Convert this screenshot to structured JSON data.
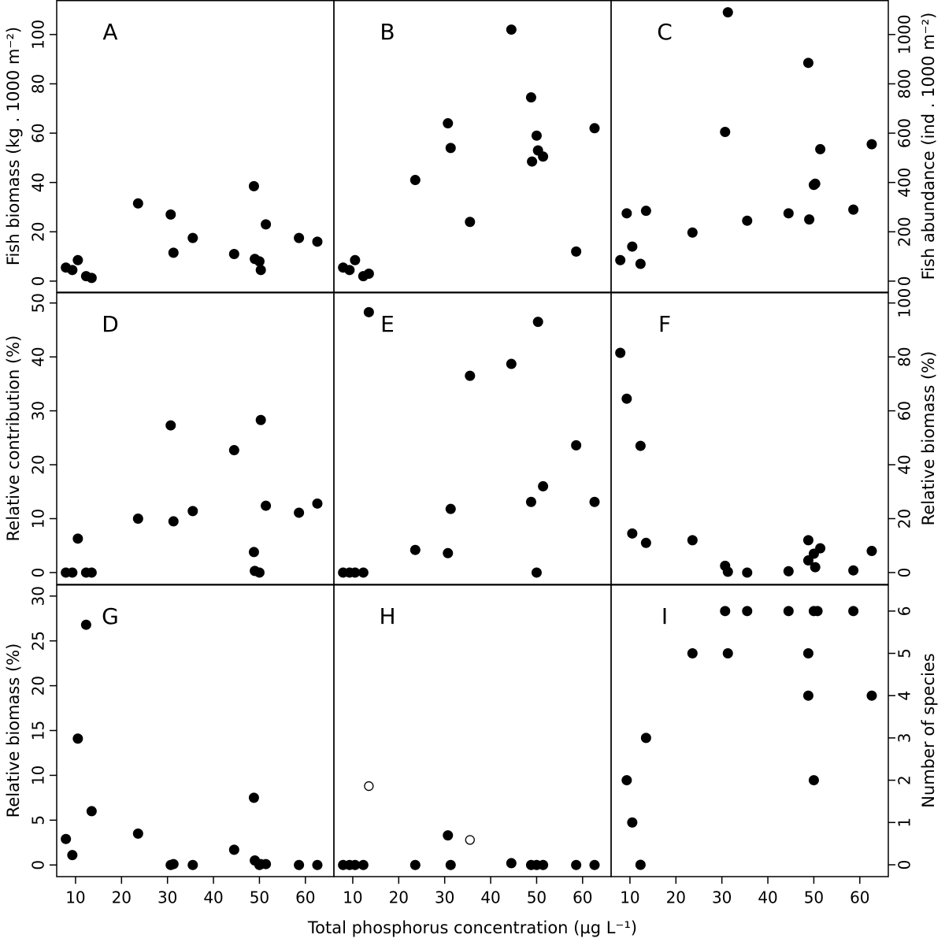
{
  "chart_data": [
    {
      "type": "scatter",
      "label": "A",
      "ylabel": "Fish biomass (kg . 1000 m⁻²)",
      "y_axis_side": "left",
      "xlim": [
        5.9,
        66.2
      ],
      "ylim": [
        -4.5,
        114
      ],
      "yticks": [
        0,
        20,
        40,
        60,
        80,
        100
      ],
      "series": [
        {
          "color": "#000000",
          "marker": "filled",
          "x": [
            7.9,
            9.3,
            10.5,
            12.3,
            13.5,
            23.6,
            30.7,
            31.3,
            35.5,
            44.5,
            48.8,
            49.0,
            50.0,
            50.3,
            51.4,
            58.6,
            62.6
          ],
          "y": [
            5.5,
            4.5,
            8.5,
            2,
            1.3,
            31.5,
            27,
            11.5,
            17.5,
            11,
            38.5,
            9,
            8,
            4.5,
            23,
            17.5,
            16
          ]
        }
      ]
    },
    {
      "type": "scatter",
      "label": "B",
      "xlim": [
        5.9,
        66.2
      ],
      "ylim": [
        -4.5,
        114
      ],
      "series": [
        {
          "color": "#000000",
          "marker": "filled",
          "x": [
            7.9,
            9.3,
            10.5,
            12.3,
            13.5,
            23.6,
            30.7,
            31.3,
            35.5,
            44.5,
            48.8,
            49.0,
            50.0,
            50.3,
            51.4,
            58.6,
            62.6
          ],
          "y": [
            5.5,
            4.5,
            8.5,
            2,
            3,
            41,
            64,
            54,
            24,
            102,
            74.5,
            48.5,
            59,
            53,
            50.5,
            12,
            62
          ]
        }
      ]
    },
    {
      "type": "scatter",
      "label": "C",
      "ylabel": "Fish abundance (ind . 1000 m⁻²)",
      "y_axis_side": "right",
      "xlim": [
        5.9,
        66.2
      ],
      "ylim": [
        -45,
        1140
      ],
      "yticks": [
        0,
        200,
        400,
        600,
        800,
        1000
      ],
      "series": [
        {
          "color": "#000000",
          "marker": "filled",
          "x": [
            7.9,
            9.3,
            10.5,
            12.3,
            13.5,
            23.6,
            30.7,
            31.3,
            35.5,
            44.5,
            48.8,
            49.0,
            50.0,
            50.3,
            51.4,
            58.6,
            62.6
          ],
          "y": [
            85,
            275,
            140,
            70,
            285,
            197,
            605,
            1090,
            245,
            275,
            885,
            250,
            390,
            395,
            535,
            290,
            555
          ]
        }
      ]
    },
    {
      "type": "scatter",
      "label": "D",
      "ylabel": "Relative contribution (%)",
      "y_axis_side": "left",
      "xlim": [
        5.9,
        66.2
      ],
      "ylim": [
        -2.2,
        52
      ],
      "yticks": [
        0,
        10,
        20,
        30,
        40,
        50
      ],
      "series": [
        {
          "color": "#000000",
          "marker": "filled",
          "x": [
            7.9,
            9.3,
            10.5,
            12.3,
            13.5,
            23.6,
            30.7,
            31.3,
            35.5,
            44.5,
            48.8,
            49.0,
            50.3,
            50.0,
            51.4,
            58.6,
            62.6
          ],
          "y": [
            0,
            0,
            6.3,
            0,
            0,
            10,
            27.3,
            9.5,
            11.4,
            22.7,
            3.8,
            0.3,
            28.3,
            0,
            12.4,
            11.1,
            12.8
          ]
        }
      ]
    },
    {
      "type": "scatter",
      "label": "E",
      "xlim": [
        5.9,
        66.2
      ],
      "ylim": [
        -2.2,
        52
      ],
      "series": [
        {
          "color": "#000000",
          "marker": "filled",
          "x": [
            7.9,
            9.3,
            10.5,
            12.3,
            13.5,
            23.6,
            30.7,
            31.3,
            35.5,
            44.5,
            48.8,
            50.0,
            50.3,
            51.4,
            58.6,
            62.6
          ],
          "y": [
            0,
            0,
            0,
            0,
            48.3,
            4.2,
            3.6,
            11.8,
            36.5,
            38.7,
            13.1,
            0,
            46.5,
            16,
            23.6,
            13.1
          ]
        }
      ]
    },
    {
      "type": "scatter",
      "label": "F",
      "ylabel": "Relative biomass (%)",
      "y_axis_side": "right",
      "xlim": [
        5.9,
        66.2
      ],
      "ylim": [
        -4.4,
        104
      ],
      "yticks": [
        0,
        20,
        40,
        60,
        80,
        100
      ],
      "series": [
        {
          "color": "#000000",
          "marker": "filled",
          "x": [
            7.9,
            9.3,
            10.5,
            12.3,
            13.5,
            23.6,
            30.7,
            31.3,
            35.5,
            44.5,
            48.8,
            48.8,
            50.0,
            50.3,
            51.4,
            58.6,
            62.6
          ],
          "y": [
            81.5,
            64.5,
            14.5,
            47,
            11,
            12,
            2.5,
            0.3,
            0,
            0.5,
            12,
            4.5,
            7,
            2,
            9,
            0.8,
            8
          ]
        }
      ]
    },
    {
      "type": "scatter",
      "label": "G",
      "ylabel": "Relative biomass (%)",
      "y_axis_side": "left",
      "xlim": [
        5.9,
        66.2
      ],
      "ylim": [
        -1.3,
        31.3
      ],
      "yticks": [
        0,
        5,
        10,
        15,
        20,
        25,
        30
      ],
      "xticks": [
        10,
        20,
        30,
        40,
        50,
        60
      ],
      "series": [
        {
          "color": "#000000",
          "marker": "filled",
          "x": [
            7.9,
            9.3,
            10.5,
            12.3,
            13.5,
            23.6,
            30.7,
            31.3,
            35.5,
            44.5,
            48.8,
            49.0,
            50.0,
            50.3,
            51.4,
            58.6,
            62.6
          ],
          "y": [
            2.9,
            1.1,
            14.1,
            26.8,
            6,
            3.5,
            0,
            0.1,
            0,
            1.7,
            7.5,
            0.5,
            0,
            0.1,
            0.1,
            0,
            0
          ]
        }
      ]
    },
    {
      "type": "scatter",
      "label": "H",
      "xlabel": "Total phosphorus concentration (µg L⁻¹)",
      "xlim": [
        5.9,
        66.2
      ],
      "ylim": [
        -1.3,
        31.3
      ],
      "xticks": [
        10,
        20,
        30,
        40,
        50,
        60
      ],
      "series": [
        {
          "color": "#000000",
          "marker": "filled",
          "x": [
            7.9,
            9.3,
            10.5,
            12.3,
            23.6,
            30.7,
            31.3,
            44.5,
            48.8,
            50.0,
            51.4,
            58.6,
            62.6
          ],
          "y": [
            0,
            0,
            0,
            0,
            0,
            3.3,
            0,
            0.2,
            0,
            0,
            0,
            0,
            0
          ]
        },
        {
          "color": "#000000",
          "marker": "open",
          "x": [
            13.5,
            35.5
          ],
          "y": [
            8.8,
            2.8
          ]
        }
      ]
    },
    {
      "type": "scatter",
      "label": "I",
      "ylabel": "Number of species",
      "y_axis_side": "right",
      "xlim": [
        5.9,
        66.2
      ],
      "ylim": [
        -0.28,
        6.63
      ],
      "yticks": [
        0,
        1,
        2,
        3,
        4,
        5,
        6
      ],
      "xticks": [
        10,
        20,
        30,
        40,
        50,
        60
      ],
      "series": [
        {
          "color": "#000000",
          "marker": "filled",
          "x": [
            9.3,
            10.5,
            12.3,
            13.5,
            23.6,
            30.7,
            31.3,
            35.5,
            44.5,
            48.8,
            48.8,
            50.0,
            50.8,
            50.0,
            58.6,
            62.6
          ],
          "y": [
            2,
            1,
            0,
            3,
            5,
            6,
            5,
            6,
            6,
            5,
            4,
            6,
            6,
            2,
            6,
            4
          ]
        }
      ]
    }
  ]
}
